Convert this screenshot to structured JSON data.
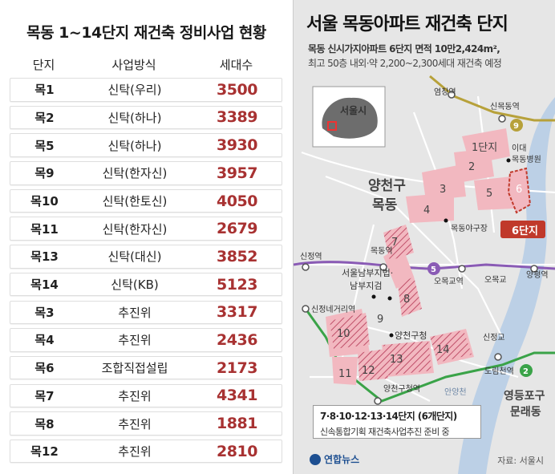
{
  "table": {
    "title": "목동 1~14단지 재건축 정비사업 현황",
    "headers": [
      "단지",
      "사업방식",
      "세대수"
    ],
    "rows": [
      {
        "complex": "목1",
        "method": "신탁(우리)",
        "households": "3500"
      },
      {
        "complex": "목2",
        "method": "신탁(하나)",
        "households": "3389"
      },
      {
        "complex": "목5",
        "method": "신탁(하나)",
        "households": "3930"
      },
      {
        "complex": "목9",
        "method": "신탁(한자신)",
        "households": "3957"
      },
      {
        "complex": "목10",
        "method": "신탁(한토신)",
        "households": "4050"
      },
      {
        "complex": "목11",
        "method": "신탁(한자신)",
        "households": "2679"
      },
      {
        "complex": "목13",
        "method": "신탁(대신)",
        "households": "3852"
      },
      {
        "complex": "목14",
        "method": "신탁(KB)",
        "households": "5123"
      },
      {
        "complex": "목3",
        "method": "추진위",
        "households": "3317"
      },
      {
        "complex": "목4",
        "method": "추진위",
        "households": "2436"
      },
      {
        "complex": "목6",
        "method": "조합직접설립",
        "households": "2173"
      },
      {
        "complex": "목7",
        "method": "추진위",
        "households": "4341"
      },
      {
        "complex": "목8",
        "method": "추진위",
        "households": "1881"
      },
      {
        "complex": "목12",
        "method": "추진위",
        "households": "2810"
      }
    ]
  },
  "map": {
    "title": "서울 목동아파트 재건축 단지",
    "subtitle1": "목동 신시가지아파트 6단지 면적 10만2,424m²,",
    "subtitle2": "최고 50층 내외·약 2,200~2,300세대 재건축 예정",
    "inset_label": "서울시",
    "district_label_1": "양천구",
    "district_label_2": "목동",
    "district_label_3": "영등포구",
    "district_label_4": "문래동",
    "highlight_label": "6단지",
    "stations": {
      "yeomchang": "염창역",
      "sinmokdong": "신목동역",
      "sinjeong": "신정역",
      "mokdong": "목동역",
      "omokgyo_station": "오목교역",
      "omokgyo": "오목교",
      "yangpyeong": "양평역",
      "sinjeongnegeori": "신정네거리역",
      "yangcheongucheong": "양천구청역",
      "sinjeonggyo": "신정교",
      "dorimcheon": "도림천역",
      "anyangcheon": "안양천"
    },
    "landmarks": {
      "ewha_hospital_1": "이대",
      "ewha_hospital_2": "목동병원",
      "stadium": "목동야구장",
      "court_1": "서울남부지법·",
      "court_2": "남부지검",
      "gu_office": "양천구청"
    },
    "line_numbers": {
      "line9": "9",
      "line5": "5",
      "line2": "2"
    },
    "complex_numbers": [
      "1단지",
      "2",
      "3",
      "4",
      "5",
      "6",
      "7",
      "8",
      "9",
      "10",
      "11",
      "12",
      "13",
      "14"
    ],
    "callout_title": "7·8·10·12·13·14단지 (6개단지)",
    "callout_text": "신속통합기획 재건축사업추진 준비 중",
    "logo_text": "연합뉴스",
    "source": "자료: 서울시"
  },
  "colors": {
    "accent_red": "#a83232",
    "complex_pink": "#f2b8c0",
    "line9": "#b7a13a",
    "line5": "#8a5bb5",
    "line2": "#3aa348",
    "river": "#bcd0e6"
  }
}
